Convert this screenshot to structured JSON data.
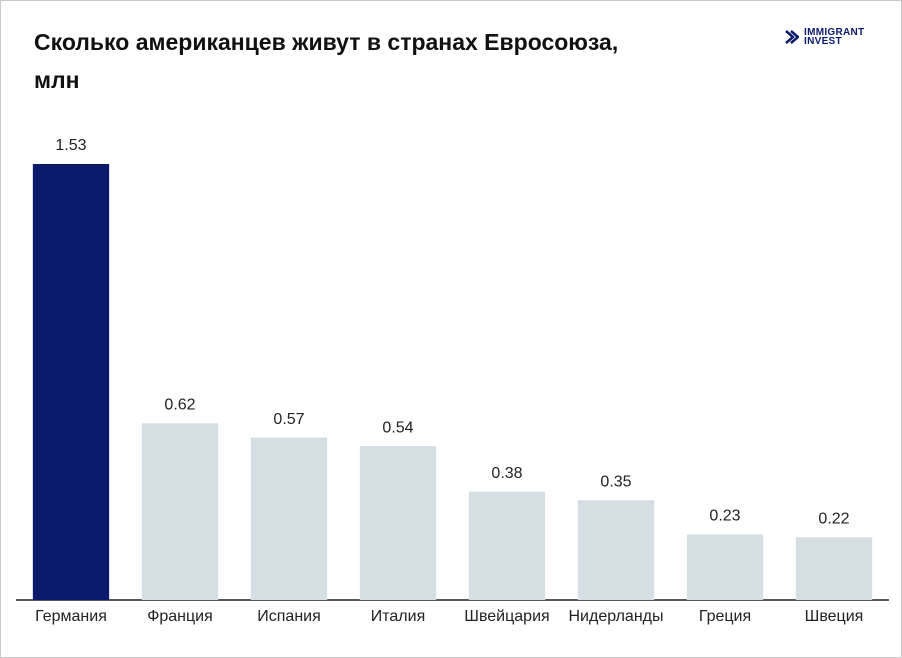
{
  "chart_data": {
    "type": "bar",
    "title": "Сколько американцев живут в странах Евросоюза, млн",
    "logo": [
      "IMMIGRANT",
      "INVEST"
    ],
    "categories": [
      "Германия",
      "Франция",
      "Испания",
      "Италия",
      "Швейцария",
      "Нидерланды",
      "Греция",
      "Швеция"
    ],
    "values": [
      1.53,
      0.62,
      0.57,
      0.54,
      0.38,
      0.35,
      0.23,
      0.22
    ],
    "colors": [
      "#0b1a6b",
      "#d5dfe3",
      "#d5dfe3",
      "#d5dfe3",
      "#d5dfe3",
      "#d5dfe3",
      "#d5dfe3",
      "#d5dfe3"
    ]
  }
}
